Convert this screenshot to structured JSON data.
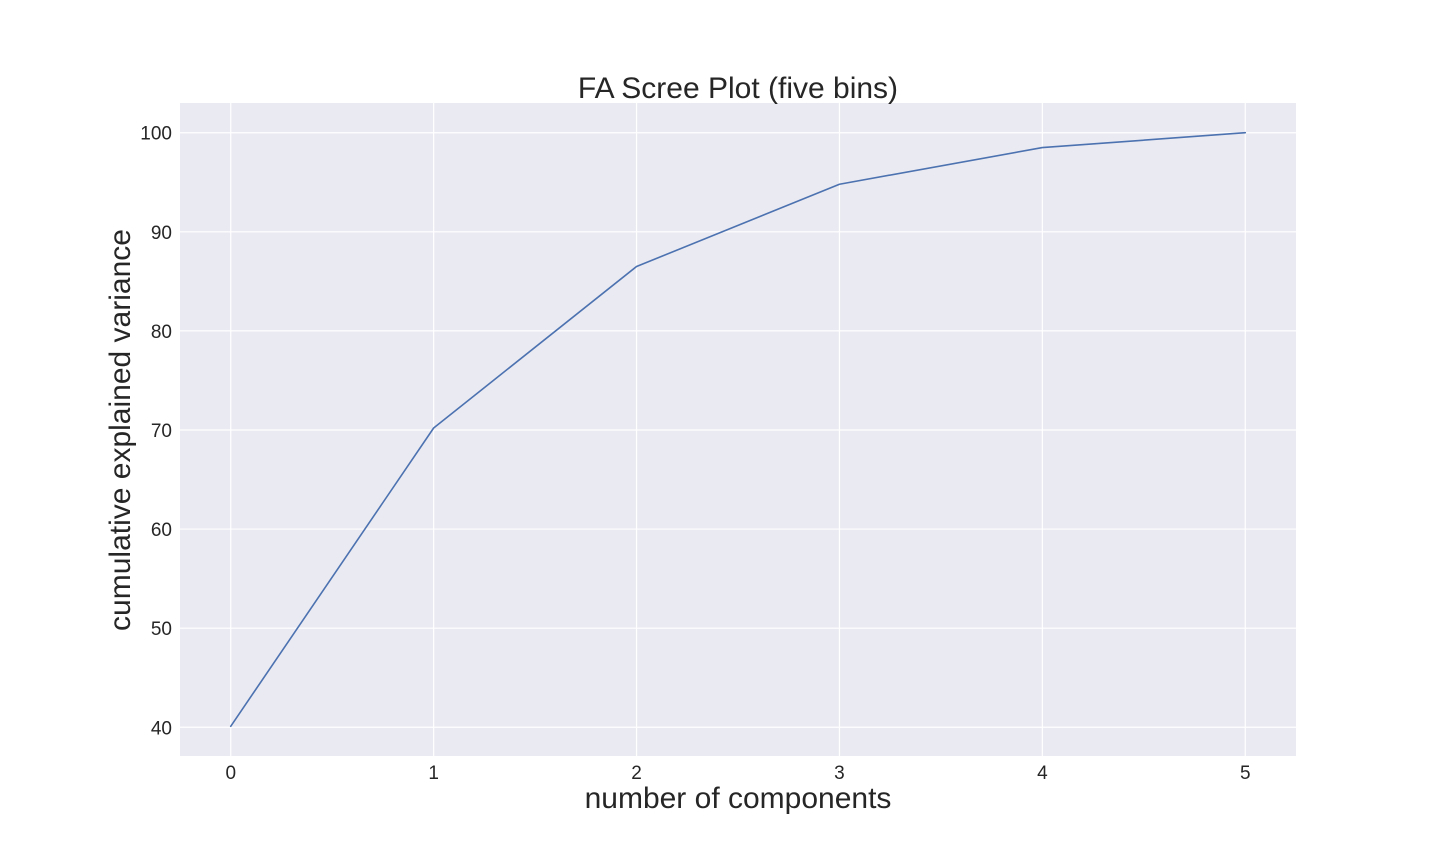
{
  "chart_data": {
    "type": "line",
    "title": "FA Scree Plot (five bins)",
    "xlabel": "number of components",
    "ylabel": "cumulative explained variance",
    "x": [
      0,
      1,
      2,
      3,
      4,
      5
    ],
    "series": [
      {
        "values": [
          40.1,
          70.2,
          86.5,
          94.8,
          98.5,
          100.0
        ]
      }
    ],
    "xlim": [
      -0.25,
      5.25
    ],
    "ylim": [
      37.1,
      103.0
    ],
    "xticks": [
      0,
      1,
      2,
      3,
      4,
      5
    ],
    "yticks": [
      40,
      50,
      60,
      70,
      80,
      90,
      100
    ],
    "grid": true,
    "legend": "none",
    "colors": {
      "plot_background": "#eaeaf2",
      "grid": "#ffffff",
      "series": "#4c72b0",
      "text": "#262626"
    }
  }
}
